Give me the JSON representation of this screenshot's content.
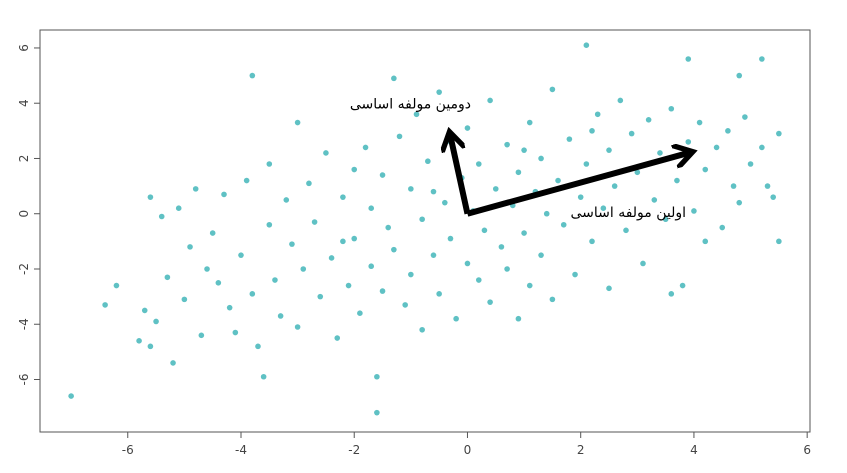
{
  "chart_data": {
    "type": "scatter",
    "color": "#5fc1c4",
    "xlim": [
      -7.55,
      6.05
    ],
    "ylim": [
      -7.9,
      6.65
    ],
    "xticks": [
      -6,
      -4,
      -2,
      0,
      2,
      4,
      6
    ],
    "yticks": [
      -6,
      -4,
      -2,
      0,
      2,
      4,
      6
    ],
    "x": [
      -7.0,
      -6.4,
      -6.2,
      -5.8,
      -5.7,
      -5.6,
      -5.6,
      -5.5,
      -5.4,
      -5.3,
      -5.2,
      -5.1,
      -5.0,
      -4.9,
      -4.8,
      -4.7,
      -4.6,
      -4.5,
      -4.3,
      -4.2,
      -4.1,
      -4.0,
      -3.9,
      -3.8,
      -3.8,
      -3.7,
      -3.6,
      -3.5,
      -3.5,
      -3.4,
      -3.3,
      -3.2,
      -3.1,
      -3.0,
      -3.0,
      -2.9,
      -2.8,
      -2.7,
      -2.6,
      -2.5,
      -2.4,
      -2.3,
      -2.2,
      -2.1,
      -2.0,
      -2.0,
      -1.9,
      -1.8,
      -1.7,
      -1.7,
      -1.6,
      -1.6,
      -1.5,
      -1.5,
      -1.4,
      -1.3,
      -1.3,
      -1.2,
      -1.1,
      -1.0,
      -1.0,
      -0.9,
      -0.8,
      -0.8,
      -0.7,
      -0.6,
      -0.5,
      -0.5,
      -0.4,
      -0.3,
      -0.3,
      -0.2,
      -0.1,
      0.0,
      0.0,
      0.1,
      0.2,
      0.2,
      0.3,
      0.4,
      0.4,
      0.5,
      0.6,
      0.7,
      0.7,
      0.8,
      0.9,
      0.9,
      1.0,
      1.1,
      1.1,
      1.2,
      1.3,
      1.3,
      1.4,
      1.5,
      1.5,
      1.6,
      1.7,
      1.8,
      1.9,
      2.0,
      2.1,
      2.1,
      2.2,
      2.3,
      2.4,
      2.5,
      2.5,
      2.6,
      2.7,
      2.8,
      2.9,
      3.0,
      3.1,
      3.2,
      3.3,
      3.4,
      3.5,
      3.6,
      3.6,
      3.7,
      3.9,
      3.9,
      4.0,
      4.1,
      4.2,
      4.2,
      4.4,
      4.5,
      4.6,
      4.7,
      4.8,
      4.8,
      4.9,
      5.0,
      5.2,
      5.2,
      5.4,
      5.5,
      5.5,
      5.3,
      3.8,
      -4.4,
      -2.2,
      -0.6,
      1.0,
      2.2
    ],
    "y": [
      -6.6,
      -3.3,
      -2.6,
      -4.6,
      -3.5,
      -4.8,
      0.6,
      -3.9,
      -0.1,
      -2.3,
      -5.4,
      0.2,
      -3.1,
      -1.2,
      0.9,
      -4.4,
      -2.0,
      -0.7,
      0.7,
      -3.4,
      -4.3,
      -1.5,
      1.2,
      5.0,
      -2.9,
      -4.8,
      -5.9,
      -0.4,
      1.8,
      -2.4,
      -3.7,
      0.5,
      -1.1,
      3.3,
      -4.1,
      -2.0,
      1.1,
      -0.3,
      -3.0,
      2.2,
      -1.6,
      -4.5,
      0.6,
      -2.6,
      1.6,
      -0.9,
      -3.6,
      2.4,
      -1.9,
      0.2,
      -5.9,
      -7.2,
      -2.8,
      1.4,
      -0.5,
      4.9,
      -1.3,
      2.8,
      -3.3,
      0.9,
      -2.2,
      3.6,
      -0.2,
      -4.2,
      1.9,
      -1.5,
      4.4,
      -2.9,
      0.4,
      2.6,
      -0.9,
      -3.8,
      1.3,
      -1.8,
      3.1,
      0.1,
      -2.4,
      1.8,
      -0.6,
      4.1,
      -3.2,
      0.9,
      -1.2,
      2.5,
      -2.0,
      0.3,
      -3.8,
      1.5,
      -0.7,
      3.3,
      -2.6,
      0.8,
      2.0,
      -1.5,
      0.0,
      4.5,
      -3.1,
      1.2,
      -0.4,
      2.7,
      -2.2,
      0.6,
      6.1,
      1.8,
      -1.0,
      3.6,
      0.2,
      -2.7,
      2.3,
      1.0,
      4.1,
      -0.6,
      2.9,
      1.5,
      -1.8,
      3.4,
      0.5,
      2.2,
      -0.2,
      -2.9,
      3.8,
      1.2,
      5.6,
      2.6,
      0.1,
      3.3,
      -1.0,
      1.6,
      2.4,
      -0.5,
      3.0,
      1.0,
      5.0,
      0.4,
      3.5,
      1.8,
      5.6,
      2.4,
      0.6,
      -1.0,
      2.9,
      1.0,
      -2.6,
      -2.5,
      -1.0,
      0.8,
      2.3,
      3.0
    ],
    "arrows": [
      {
        "label": "اولین مولفه اساسی",
        "x": [
          0,
          3.9
        ],
        "y": [
          0,
          2.2
        ]
      },
      {
        "label": "دومین مولفه اساسی",
        "x": [
          0,
          -0.3
        ],
        "y": [
          0,
          2.8
        ]
      }
    ]
  }
}
